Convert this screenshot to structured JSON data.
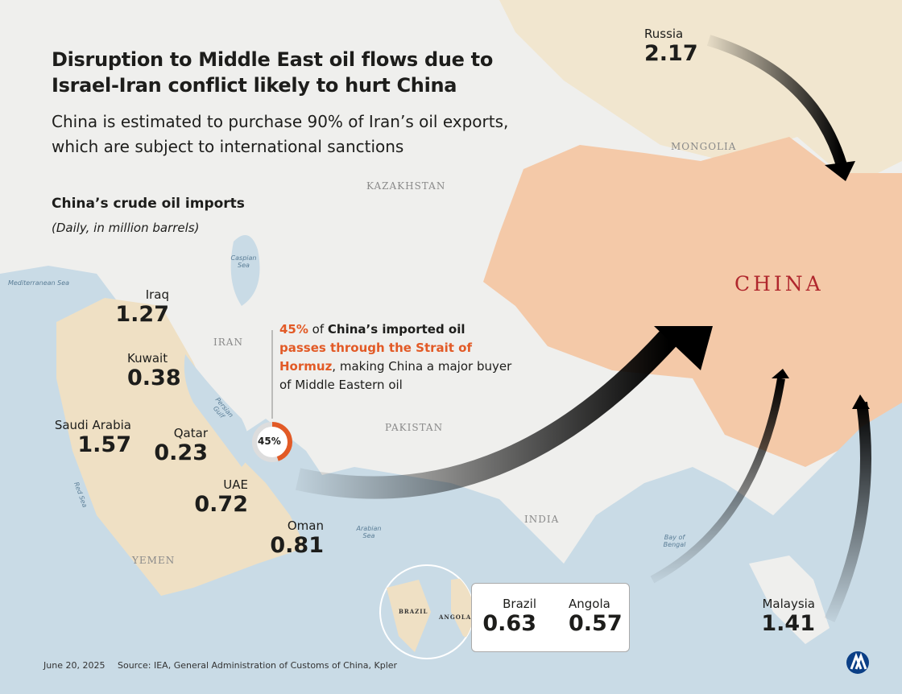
{
  "header": {
    "title": "Disruption to Middle East oil flows due to Israel-Iran conflict likely to hurt China",
    "subtitle": "China is estimated to purchase 90% of Iran’s oil exports, which are subject to international sanctions"
  },
  "chart": {
    "title": "China’s crude oil imports",
    "subtitle": "(Daily, in million barrels)"
  },
  "sources": [
    {
      "name": "Russia",
      "value": 2.17
    },
    {
      "name": "Iraq",
      "value": 1.27
    },
    {
      "name": "Kuwait",
      "value": 0.38
    },
    {
      "name": "Saudi Arabia",
      "value": 1.57
    },
    {
      "name": "Qatar",
      "value": 0.23
    },
    {
      "name": "UAE",
      "value": 0.72
    },
    {
      "name": "Oman",
      "value": 0.81
    },
    {
      "name": "Brazil",
      "value": 0.63
    },
    {
      "name": "Angola",
      "value": 0.57
    },
    {
      "name": "Malaysia",
      "value": 1.41
    }
  ],
  "hormuz_share": {
    "value": 45,
    "label": "45%"
  },
  "annotation": {
    "parts": [
      " of ",
      "China’s imported oil",
      "passes through the Strait of Hormuz",
      ", making China a major buyer of Middle Eastern oil"
    ]
  },
  "map_labels": {
    "china": "CHINA",
    "countries": [
      "MONGOLIA",
      "KAZAKHSTAN",
      "IRAN",
      "PAKISTAN",
      "INDIA",
      "YEMEN",
      "BRAZIL",
      "ANGOLA"
    ],
    "seas": [
      "Mediterranean Sea",
      "Caspian Sea",
      "Persian Gulf",
      "Red Sea",
      "Arabian Sea",
      "Bay of Bengal"
    ]
  },
  "footer": {
    "date": "June 20, 2025",
    "source": "Source: IEA, General Administration of Customs of China, Kpler"
  }
}
